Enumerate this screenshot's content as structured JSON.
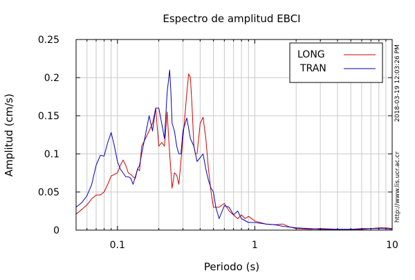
{
  "chart_data": {
    "type": "line",
    "title": "Espectro de amplitud EBCI",
    "xlabel": "Periodo (s)",
    "ylabel": "Amplitud (cm/s)",
    "x_scale": "log",
    "xlim": [
      0.05,
      10
    ],
    "ylim": [
      0,
      0.25
    ],
    "x_ticks": [
      0.1,
      1,
      10
    ],
    "x_tick_labels": [
      "0.1",
      "1",
      "10"
    ],
    "y_ticks": [
      0,
      0.05,
      0.1,
      0.15,
      0.2,
      0.25
    ],
    "y_tick_labels": [
      "0",
      "0.05",
      "0.1",
      "0.15",
      "0.2",
      "0.25"
    ],
    "grid": true,
    "legend_position": "top-right",
    "timestamp_label": "2018-03-19 12:03:26 PM",
    "url_label": "http://www.lis.ucr.ac.cr",
    "series": [
      {
        "name": "LONG",
        "color": "#cc0000",
        "x": [
          0.05,
          0.055,
          0.06,
          0.065,
          0.07,
          0.075,
          0.08,
          0.085,
          0.09,
          0.1,
          0.105,
          0.11,
          0.115,
          0.12,
          0.125,
          0.13,
          0.135,
          0.14,
          0.145,
          0.15,
          0.16,
          0.17,
          0.18,
          0.19,
          0.2,
          0.21,
          0.22,
          0.23,
          0.24,
          0.25,
          0.26,
          0.27,
          0.28,
          0.3,
          0.32,
          0.33,
          0.34,
          0.35,
          0.36,
          0.37,
          0.38,
          0.4,
          0.42,
          0.44,
          0.46,
          0.48,
          0.5,
          0.55,
          0.6,
          0.65,
          0.7,
          0.75,
          0.8,
          0.85,
          0.9,
          1.0,
          1.2,
          1.4,
          1.6,
          1.8,
          2.0,
          2.5,
          3.0,
          4.0,
          5.0,
          6.0,
          7.0,
          8.0,
          9.0,
          10.0
        ],
        "y": [
          0.021,
          0.027,
          0.033,
          0.041,
          0.046,
          0.046,
          0.05,
          0.06,
          0.071,
          0.075,
          0.085,
          0.092,
          0.085,
          0.075,
          0.073,
          0.07,
          0.068,
          0.08,
          0.078,
          0.11,
          0.12,
          0.13,
          0.14,
          0.16,
          0.11,
          0.115,
          0.11,
          0.155,
          0.1,
          0.055,
          0.075,
          0.072,
          0.06,
          0.12,
          0.18,
          0.205,
          0.2,
          0.16,
          0.11,
          0.1,
          0.1,
          0.14,
          0.148,
          0.12,
          0.08,
          0.05,
          0.03,
          0.03,
          0.035,
          0.025,
          0.02,
          0.015,
          0.02,
          0.015,
          0.018,
          0.012,
          0.008,
          0.007,
          0.008,
          0.004,
          0.002,
          0.001,
          0.002,
          0.001,
          0.001,
          0.002,
          0.002,
          0.003,
          0.003,
          0.002
        ]
      },
      {
        "name": "TRAN",
        "color": "#0000bb",
        "x": [
          0.05,
          0.055,
          0.06,
          0.065,
          0.07,
          0.075,
          0.08,
          0.085,
          0.09,
          0.095,
          0.1,
          0.105,
          0.11,
          0.115,
          0.12,
          0.125,
          0.13,
          0.135,
          0.14,
          0.145,
          0.15,
          0.16,
          0.17,
          0.18,
          0.19,
          0.2,
          0.21,
          0.22,
          0.23,
          0.24,
          0.245,
          0.25,
          0.26,
          0.27,
          0.28,
          0.29,
          0.3,
          0.32,
          0.34,
          0.36,
          0.38,
          0.4,
          0.42,
          0.44,
          0.46,
          0.48,
          0.5,
          0.52,
          0.55,
          0.6,
          0.65,
          0.7,
          0.75,
          0.8,
          0.9,
          1.0,
          1.2,
          1.4,
          1.6,
          1.8,
          2.0,
          2.5,
          3.0,
          4.0,
          5.0,
          6.0,
          7.0,
          8.0,
          9.0,
          10.0
        ],
        "y": [
          0.03,
          0.036,
          0.045,
          0.06,
          0.085,
          0.098,
          0.097,
          0.115,
          0.128,
          0.11,
          0.09,
          0.08,
          0.075,
          0.07,
          0.07,
          0.068,
          0.06,
          0.07,
          0.08,
          0.085,
          0.1,
          0.125,
          0.15,
          0.13,
          0.16,
          0.16,
          0.14,
          0.12,
          0.18,
          0.21,
          0.18,
          0.14,
          0.13,
          0.11,
          0.1,
          0.1,
          0.13,
          0.147,
          0.12,
          0.11,
          0.09,
          0.095,
          0.1,
          0.08,
          0.065,
          0.055,
          0.05,
          0.03,
          0.015,
          0.032,
          0.03,
          0.02,
          0.025,
          0.015,
          0.01,
          0.01,
          0.008,
          0.007,
          0.005,
          0.004,
          0.003,
          0.002,
          0.001,
          0.001,
          0.001,
          0.001,
          0.002,
          0.002,
          0.002,
          0.001
        ]
      }
    ]
  }
}
